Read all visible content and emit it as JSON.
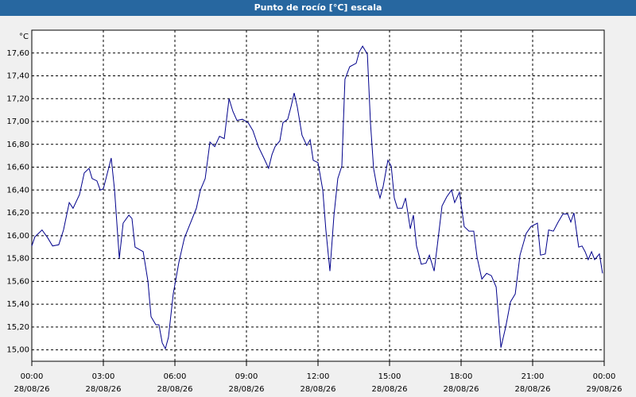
{
  "chart_data": {
    "type": "line",
    "title": "Punto de rocío [°C] escala",
    "y_unit": "°C",
    "x": [
      0,
      0.13,
      0.43,
      0.67,
      0.87,
      1.13,
      1.33,
      1.57,
      1.73,
      2.0,
      2.2,
      2.4,
      2.53,
      2.73,
      2.87,
      3.0,
      3.33,
      3.47,
      3.67,
      3.83,
      4.07,
      4.2,
      4.33,
      4.67,
      4.87,
      5.0,
      5.2,
      5.33,
      5.47,
      5.6,
      5.73,
      5.93,
      6.17,
      6.4,
      6.67,
      6.9,
      7.07,
      7.27,
      7.47,
      7.67,
      7.87,
      8.07,
      8.27,
      8.43,
      8.6,
      8.83,
      9.07,
      9.27,
      9.5,
      9.73,
      9.93,
      10.07,
      10.2,
      10.4,
      10.53,
      10.73,
      10.87,
      11.0,
      11.13,
      11.33,
      11.53,
      11.67,
      11.8,
      12.0,
      12.2,
      12.33,
      12.5,
      12.67,
      12.83,
      13.0,
      13.13,
      13.33,
      13.6,
      13.73,
      13.87,
      14.07,
      14.2,
      14.33,
      14.47,
      14.6,
      14.73,
      14.93,
      15.07,
      15.2,
      15.33,
      15.53,
      15.67,
      15.87,
      16.0,
      16.13,
      16.33,
      16.53,
      16.67,
      16.87,
      17.0,
      17.2,
      17.4,
      17.6,
      17.73,
      17.93,
      18.13,
      18.33,
      18.53,
      18.67,
      18.87,
      19.07,
      19.27,
      19.47,
      19.67,
      19.87,
      20.07,
      20.27,
      20.47,
      20.73,
      20.93,
      21.2,
      21.33,
      21.53,
      21.67,
      21.87,
      22.07,
      22.27,
      22.47,
      22.6,
      22.73,
      22.93,
      23.07,
      23.2,
      23.33,
      23.47,
      23.6,
      23.8,
      23.93
    ],
    "series": [
      {
        "color": "#00008b",
        "values": [
          15.91,
          15.99,
          16.05,
          15.98,
          15.91,
          15.92,
          16.05,
          16.29,
          16.24,
          16.36,
          16.55,
          16.59,
          16.5,
          16.48,
          16.4,
          16.41,
          16.68,
          16.4,
          15.8,
          16.11,
          16.18,
          16.15,
          15.9,
          15.86,
          15.6,
          15.29,
          15.22,
          15.22,
          15.06,
          15.01,
          15.11,
          15.49,
          15.77,
          15.98,
          16.12,
          16.24,
          16.4,
          16.5,
          16.82,
          16.78,
          16.87,
          16.85,
          17.2,
          17.09,
          17.01,
          17.02,
          16.99,
          16.92,
          16.78,
          16.68,
          16.59,
          16.71,
          16.78,
          16.83,
          16.99,
          17.02,
          17.13,
          17.25,
          17.13,
          16.88,
          16.79,
          16.84,
          16.66,
          16.64,
          16.4,
          16.05,
          15.69,
          16.18,
          16.5,
          16.61,
          17.37,
          17.48,
          17.51,
          17.61,
          17.66,
          17.59,
          16.99,
          16.59,
          16.43,
          16.33,
          16.43,
          16.66,
          16.61,
          16.33,
          16.24,
          16.24,
          16.33,
          16.06,
          16.18,
          15.91,
          15.75,
          15.76,
          15.83,
          15.69,
          15.91,
          16.26,
          16.34,
          16.4,
          16.29,
          16.38,
          16.08,
          16.04,
          16.04,
          15.81,
          15.62,
          15.67,
          15.65,
          15.55,
          15.02,
          15.2,
          15.42,
          15.49,
          15.83,
          16.02,
          16.08,
          16.11,
          15.83,
          15.84,
          16.05,
          16.04,
          16.12,
          16.19,
          16.19,
          16.12,
          16.2,
          15.9,
          15.91,
          15.86,
          15.79,
          15.86,
          15.79,
          15.84,
          15.67
        ]
      }
    ],
    "xlim": [
      0,
      24
    ],
    "xticks": [
      {
        "value": 0,
        "label": "00:00"
      },
      {
        "value": 3,
        "label": "03:00"
      },
      {
        "value": 6,
        "label": "06:00"
      },
      {
        "value": 9,
        "label": "09:00"
      },
      {
        "value": 12,
        "label": "12:00"
      },
      {
        "value": 15,
        "label": "15:00"
      },
      {
        "value": 18,
        "label": "18:00"
      },
      {
        "value": 21,
        "label": "21:00"
      },
      {
        "value": 24,
        "label": "00:00"
      }
    ],
    "xtick_dates": [
      "28/08/26",
      "28/08/26",
      "28/08/26",
      "28/08/26",
      "28/08/26",
      "28/08/26",
      "28/08/26",
      "28/08/26",
      "29/08/26"
    ],
    "ylim": [
      14.9,
      17.8
    ],
    "yticks": [
      {
        "value": 15,
        "label": "15,00"
      },
      {
        "value": 15.2,
        "label": "15,20"
      },
      {
        "value": 15.4,
        "label": "15,40"
      },
      {
        "value": 15.6,
        "label": "15,60"
      },
      {
        "value": 15.8,
        "label": "15,80"
      },
      {
        "value": 16,
        "label": "16,00"
      },
      {
        "value": 16.2,
        "label": "16,20"
      },
      {
        "value": 16.4,
        "label": "16,40"
      },
      {
        "value": 16.6,
        "label": "16,60"
      },
      {
        "value": 16.8,
        "label": "16,80"
      },
      {
        "value": 17,
        "label": "17,00"
      },
      {
        "value": 17.2,
        "label": "17,20"
      },
      {
        "value": 17.4,
        "label": "17,40"
      },
      {
        "value": 17.6,
        "label": "17,60"
      }
    ],
    "grid": true
  }
}
